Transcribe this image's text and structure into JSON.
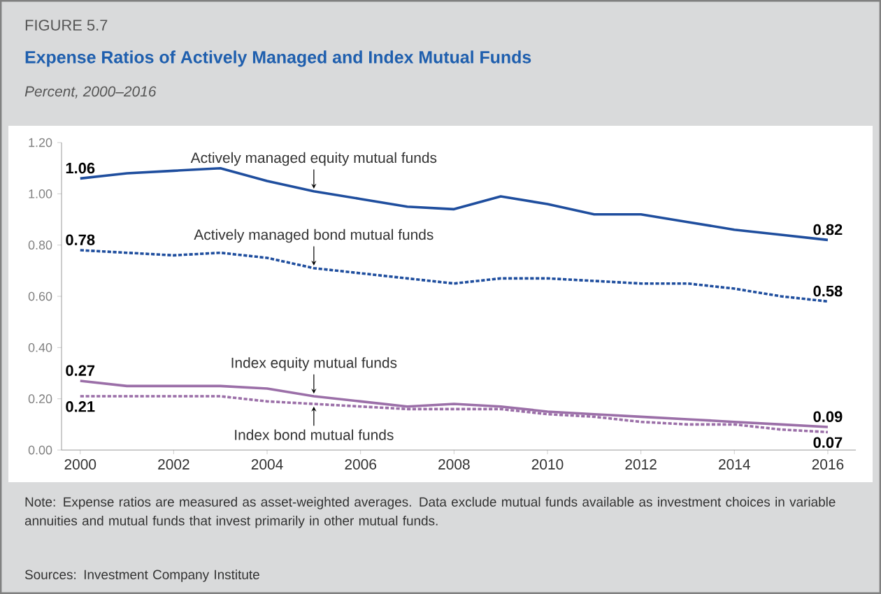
{
  "chart_data": {
    "type": "line",
    "title": "Expense Ratios of Actively Managed and Index Mutual Funds",
    "subtitle": "Percent, 2000–2016",
    "annotations": [
      "FIGURE 5.7",
      "Note: Expense ratios are measured as asset-weighted averages. Data exclude mutual funds available as investment choices in variable annuities and mutual funds that invest primarily in other mutual funds.",
      "Sources: Investment Company Institute"
    ],
    "x": [
      2000,
      2001,
      2002,
      2003,
      2004,
      2005,
      2006,
      2007,
      2008,
      2009,
      2010,
      2011,
      2012,
      2013,
      2014,
      2015,
      2016
    ],
    "series": [
      {
        "name": "Actively managed equity mutual funds",
        "color": "#1f4e9e",
        "line_style": "solid",
        "values": [
          1.06,
          1.08,
          1.09,
          1.1,
          1.05,
          1.01,
          0.98,
          0.95,
          0.94,
          0.99,
          0.96,
          0.92,
          0.92,
          0.89,
          0.86,
          0.84,
          0.82
        ],
        "value_labels": [
          "1.06",
          null,
          null,
          null,
          null,
          null,
          null,
          null,
          null,
          null,
          null,
          null,
          null,
          null,
          null,
          null,
          "0.82"
        ]
      },
      {
        "name": "Actively managed bond mutual funds",
        "color": "#1f4e9e",
        "line_style": "dashed",
        "values": [
          0.78,
          0.77,
          0.76,
          0.77,
          0.75,
          0.71,
          0.69,
          0.67,
          0.65,
          0.67,
          0.67,
          0.66,
          0.65,
          0.65,
          0.63,
          0.6,
          0.58
        ],
        "value_labels": [
          "0.78",
          null,
          null,
          null,
          null,
          null,
          null,
          null,
          null,
          null,
          null,
          null,
          null,
          null,
          null,
          null,
          "0.58"
        ]
      },
      {
        "name": "Index equity mutual funds",
        "color": "#9b6fa8",
        "line_style": "solid",
        "values": [
          0.27,
          0.25,
          0.25,
          0.25,
          0.24,
          0.21,
          0.19,
          0.17,
          0.18,
          0.17,
          0.15,
          0.14,
          0.13,
          0.12,
          0.11,
          0.1,
          0.09
        ],
        "value_labels": [
          "0.27",
          null,
          null,
          null,
          null,
          null,
          null,
          null,
          null,
          null,
          null,
          null,
          null,
          null,
          null,
          null,
          "0.09"
        ]
      },
      {
        "name": "Index bond mutual funds",
        "color": "#9b6fa8",
        "line_style": "dashed",
        "values": [
          0.21,
          0.21,
          0.21,
          0.21,
          0.19,
          0.18,
          0.17,
          0.16,
          0.16,
          0.16,
          0.14,
          0.13,
          0.11,
          0.1,
          0.1,
          0.08,
          0.07
        ],
        "value_labels": [
          "0.21",
          null,
          null,
          null,
          null,
          null,
          null,
          null,
          null,
          null,
          null,
          null,
          null,
          null,
          null,
          null,
          "0.07"
        ]
      }
    ],
    "xlim": [
      1999.6,
      2016.6
    ],
    "ylim": [
      0,
      1.2
    ],
    "xticks": [
      2000,
      2002,
      2004,
      2006,
      2008,
      2010,
      2012,
      2014,
      2016
    ],
    "yticks": [
      {
        "value": 0,
        "label": "0.00"
      },
      {
        "value": 0.2,
        "label": "0.20"
      },
      {
        "value": 0.4,
        "label": "0.40"
      },
      {
        "value": 0.6,
        "label": "0.60"
      },
      {
        "value": 0.8,
        "label": "0.80"
      },
      {
        "value": 1.0,
        "label": "1.00"
      },
      {
        "value": 1.2,
        "label": "1.20"
      }
    ]
  }
}
